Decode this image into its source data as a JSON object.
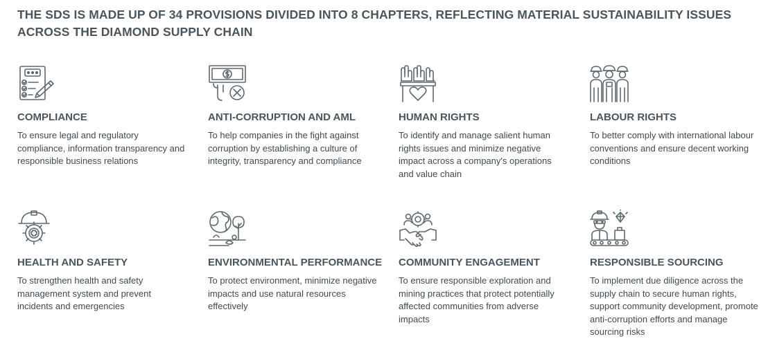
{
  "title": "THE SDS IS MADE UP OF 34 PROVISIONS DIVIDED INTO 8 CHAPTERS, REFLECTING MATERIAL SUSTAINABILITY ISSUES ACROSS THE DIAMOND SUPPLY CHAIN",
  "chapters": [
    {
      "title": "COMPLIANCE",
      "description": "To ensure legal and regulatory compliance, information transparency and responsible business relations",
      "icon": "checklist-document-icon"
    },
    {
      "title": "ANTI-CORRUPTION AND AML",
      "description": "To help companies in the fight against corruption by establishing a culture of integrity, transparency and compliance",
      "icon": "no-bribery-icon"
    },
    {
      "title": "HUMAN RIGHTS",
      "description": "To identify and manage salient human rights issues and minimize negative impact across a company's operations and value chain",
      "icon": "raised-hands-heart-icon"
    },
    {
      "title": "LABOUR RIGHTS",
      "description": "To better comply with international labour conventions and ensure decent working conditions",
      "icon": "workers-group-icon"
    },
    {
      "title": "HEALTH AND SAFETY",
      "description": "To strengthen health and safety management system and prevent incidents and emergencies",
      "icon": "helmet-gear-cross-icon"
    },
    {
      "title": "ENVIRONMENTAL PERFORMANCE",
      "description": "To protect environment, minimize negative impacts and use natural resources effectively",
      "icon": "globe-tree-icon"
    },
    {
      "title": "COMMUNITY ENGAGEMENT",
      "description": "To ensure responsible exploration and mining practices that protect potentially affected communities from adverse impacts",
      "icon": "handshake-people-icon"
    },
    {
      "title": "RESPONSIBLE SOURCING",
      "description": "To implement due diligence across the supply chain to secure human rights, support community development, promote anti-corruption efforts and manage sourcing risks",
      "icon": "worker-diamond-conveyor-icon"
    }
  ]
}
